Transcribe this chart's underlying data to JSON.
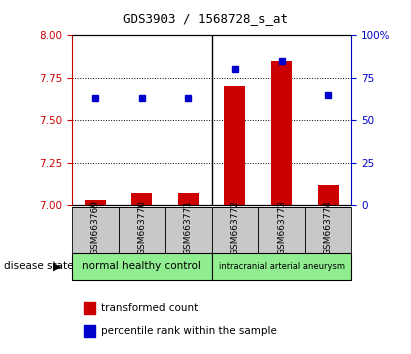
{
  "title": "GDS3903 / 1568728_s_at",
  "samples": [
    "GSM663769",
    "GSM663770",
    "GSM663771",
    "GSM663772",
    "GSM663773",
    "GSM663774"
  ],
  "group1_label": "normal healthy control",
  "group2_label": "intracranial arterial aneurysm",
  "group_color": "#90EE90",
  "transformed_count": [
    7.03,
    7.07,
    7.07,
    7.7,
    7.85,
    7.12
  ],
  "percentile_rank": [
    63,
    63,
    63,
    80,
    85,
    65
  ],
  "ylim_left": [
    7.0,
    8.0
  ],
  "ylim_right": [
    0,
    100
  ],
  "yticks_left": [
    7.0,
    7.25,
    7.5,
    7.75,
    8.0
  ],
  "yticks_right": [
    0,
    25,
    50,
    75,
    100
  ],
  "hlines": [
    7.25,
    7.5,
    7.75
  ],
  "bar_color": "#CC0000",
  "dot_color": "#0000CC",
  "sample_bg_color": "#C8C8C8",
  "legend_label_bar": "transformed count",
  "legend_label_dot": "percentile rank within the sample",
  "disease_state": "disease state",
  "n_group1": 3,
  "n_group2": 3,
  "bar_width": 0.45
}
